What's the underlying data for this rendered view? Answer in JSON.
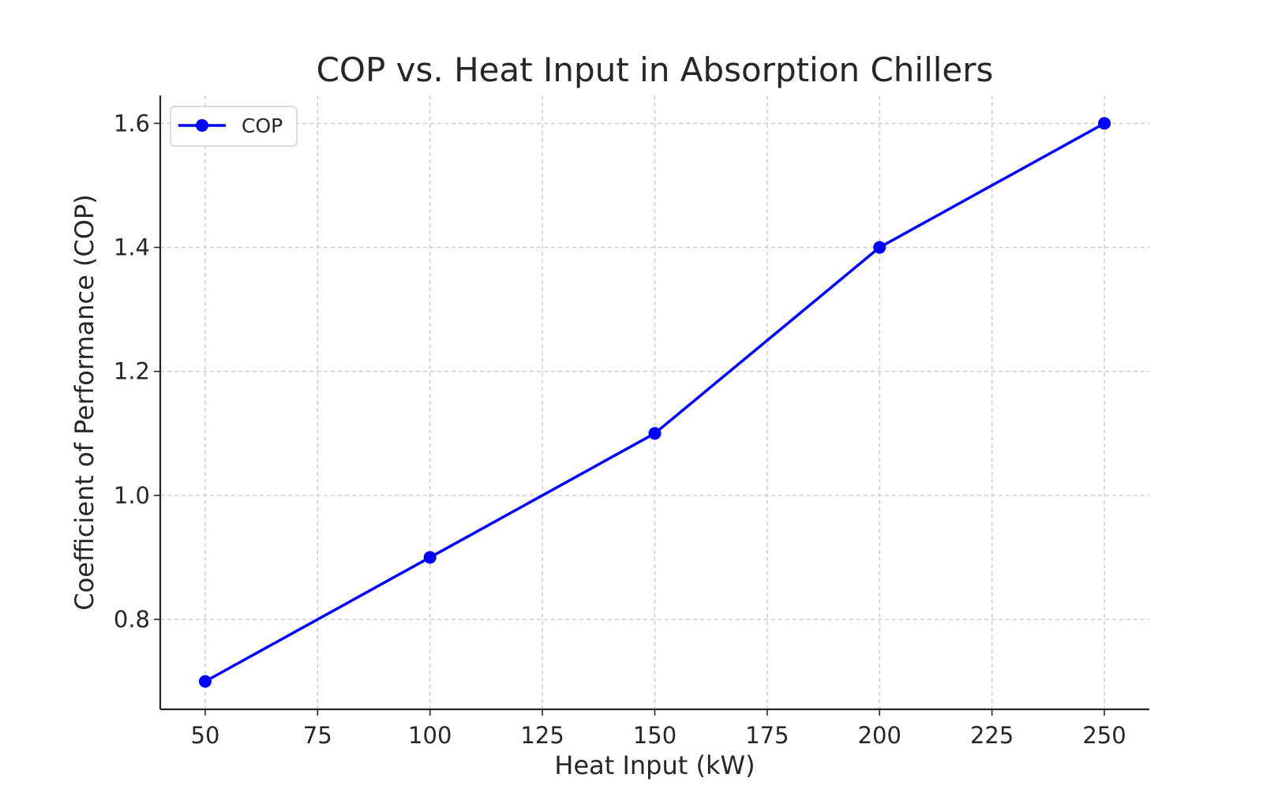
{
  "chart_data": {
    "type": "line",
    "title": "COP vs. Heat Input in Absorption Chillers",
    "xlabel": "Heat Input (kW)",
    "ylabel": "Coefficient of Performance (COP)",
    "x": [
      50,
      100,
      150,
      200,
      250
    ],
    "series": [
      {
        "name": "COP",
        "values": [
          0.7,
          0.9,
          1.1,
          1.4,
          1.6
        ],
        "color": "#0000ff",
        "marker": "circle"
      }
    ],
    "xticks": [
      50,
      75,
      100,
      125,
      150,
      175,
      200,
      225,
      250
    ],
    "xtick_labels": [
      "50",
      "75",
      "100",
      "125",
      "150",
      "175",
      "200",
      "225",
      "250"
    ],
    "yticks": [
      0.8,
      1.0,
      1.2,
      1.4,
      1.6
    ],
    "ytick_labels": [
      "0.8",
      "1.0",
      "1.2",
      "1.4",
      "1.6"
    ],
    "xlim": [
      40,
      260
    ],
    "ylim": [
      0.655,
      1.645
    ],
    "grid": true,
    "legend": "top-left"
  }
}
